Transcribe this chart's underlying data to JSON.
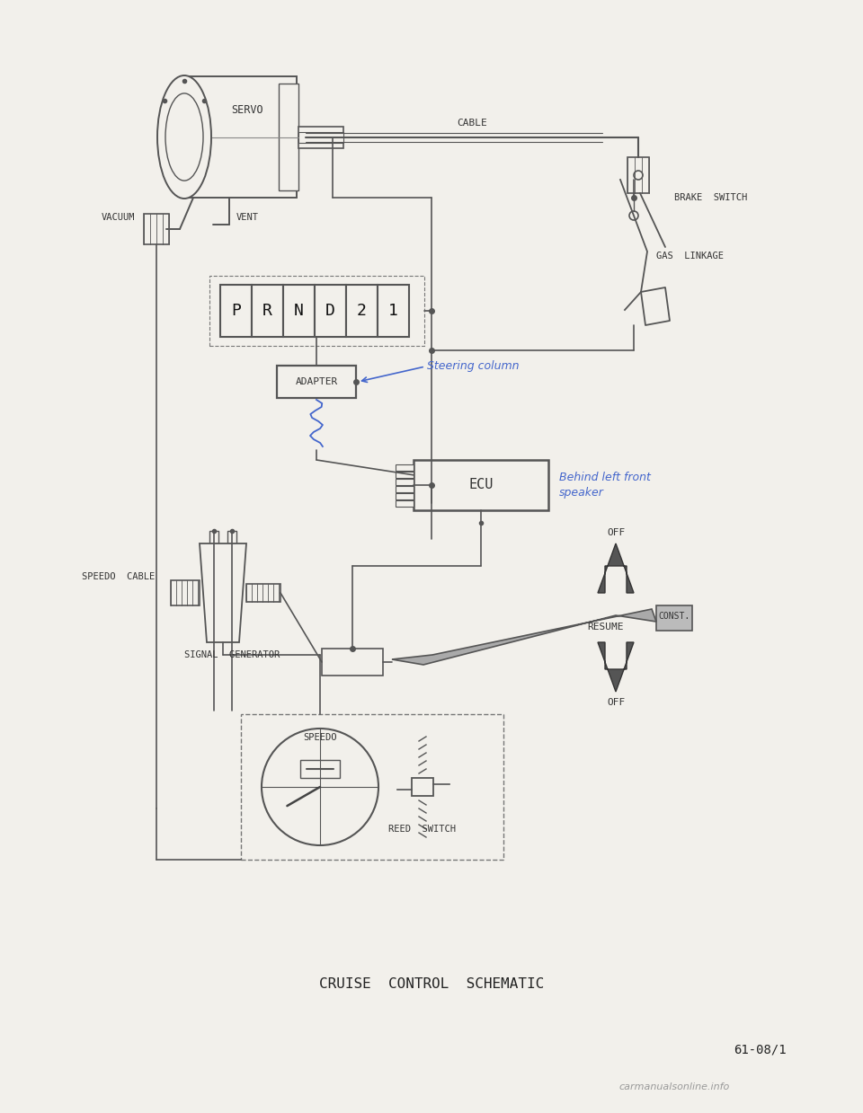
{
  "bg_color": "#f2f0eb",
  "line_color": "#555555",
  "text_color": "#333333",
  "blue_color": "#4466cc",
  "title": "CRUISE  CONTROL  SCHEMATIC",
  "page_ref": "61-08/1",
  "watermark": "carmanualsonline.info",
  "labels": {
    "servo": "SERVO",
    "cable": "CABLE",
    "gas_linkage": "GAS  LINKAGE",
    "brake_switch": "BRAKE  SWITCH",
    "vacuum": "VACUUM",
    "vent": "VENT",
    "adapter": "ADAPTER",
    "steering_col": "Steering column",
    "ecu": "ECU",
    "behind_line1": "Behind left front",
    "behind_line2": "speaker",
    "speedo_cable": "SPEEDO  CABLE",
    "signal_gen": "SIGNAL  GENERATOR",
    "off_top": "OFF",
    "const": "CONST.",
    "resume": "RESUME",
    "off_bot": "OFF",
    "speedo": "SPEEDO",
    "reed_switch": "REED  SWITCH"
  }
}
